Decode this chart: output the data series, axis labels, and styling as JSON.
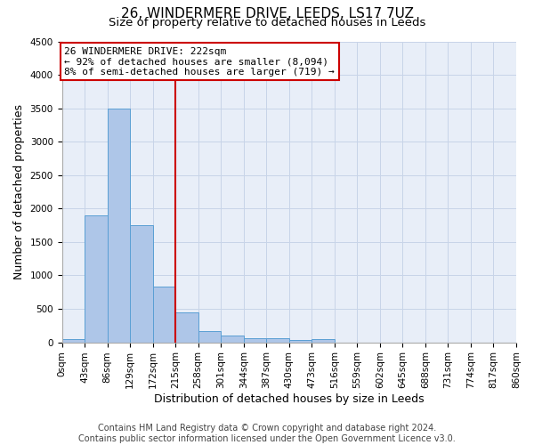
{
  "title": "26, WINDERMERE DRIVE, LEEDS, LS17 7UZ",
  "subtitle": "Size of property relative to detached houses in Leeds",
  "xlabel": "Distribution of detached houses by size in Leeds",
  "ylabel": "Number of detached properties",
  "bar_left_edges": [
    0,
    43,
    86,
    129,
    172,
    215,
    258,
    301,
    344,
    387,
    430,
    473,
    516,
    559,
    602,
    645,
    688,
    731,
    774,
    817
  ],
  "bar_heights": [
    50,
    1900,
    3500,
    1750,
    830,
    450,
    170,
    100,
    60,
    55,
    40,
    50,
    0,
    0,
    0,
    0,
    0,
    0,
    0,
    0
  ],
  "bin_width": 43,
  "bar_color": "#aec6e8",
  "bar_edge_color": "#5a9fd4",
  "vline_x": 215,
  "vline_color": "#cc0000",
  "annotation_text": "26 WINDERMERE DRIVE: 222sqm\n← 92% of detached houses are smaller (8,094)\n8% of semi-detached houses are larger (719) →",
  "annotation_box_color": "#ffffff",
  "annotation_box_edge": "#cc0000",
  "ylim": [
    0,
    4500
  ],
  "yticks": [
    0,
    500,
    1000,
    1500,
    2000,
    2500,
    3000,
    3500,
    4000,
    4500
  ],
  "xtick_labels": [
    "0sqm",
    "43sqm",
    "86sqm",
    "129sqm",
    "172sqm",
    "215sqm",
    "258sqm",
    "301sqm",
    "344sqm",
    "387sqm",
    "430sqm",
    "473sqm",
    "516sqm",
    "559sqm",
    "602sqm",
    "645sqm",
    "688sqm",
    "731sqm",
    "774sqm",
    "817sqm",
    "860sqm"
  ],
  "footer_text": "Contains HM Land Registry data © Crown copyright and database right 2024.\nContains public sector information licensed under the Open Government Licence v3.0.",
  "background_color": "#ffffff",
  "grid_color": "#c8d4e8",
  "title_fontsize": 11,
  "subtitle_fontsize": 9.5,
  "axis_label_fontsize": 9,
  "tick_fontsize": 7.5,
  "footer_fontsize": 7,
  "annotation_fontsize": 8
}
